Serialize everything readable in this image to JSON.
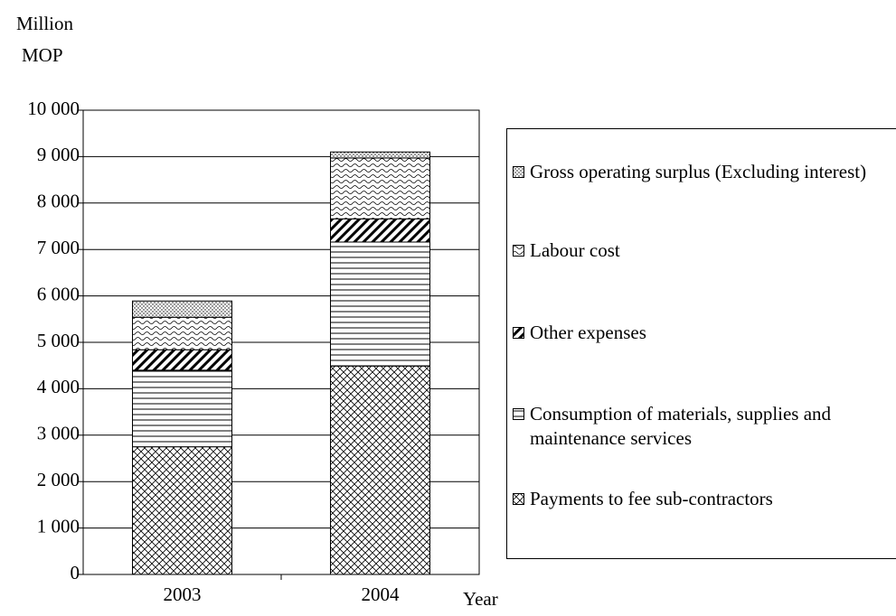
{
  "chart_data": {
    "type": "stacked_bar",
    "y_label": [
      "Million",
      "MOP"
    ],
    "x_label": "Year",
    "categories": [
      "2003",
      "2004"
    ],
    "series": [
      {
        "name": "Payments to fee sub-contractors",
        "color": "#000000",
        "values": [
          2750,
          4490
        ]
      },
      {
        "name": "Consumption of materials, supplies and maintenance services",
        "color": "#000000",
        "values": [
          1650,
          2670
        ]
      },
      {
        "name": "Other expenses",
        "color": "#000000",
        "values": [
          440,
          500
        ]
      },
      {
        "name": "Labour cost",
        "color": "#000000",
        "values": [
          700,
          1310
        ]
      },
      {
        "name": "Gross operating surplus (Excluding interest)",
        "color": "#000000",
        "values": [
          350,
          130
        ]
      }
    ],
    "ylim": [
      0,
      10000
    ],
    "yticks": [
      0,
      {
        "value": 1000,
        "label": "1 000"
      },
      {
        "value": 2000,
        "label": "2 000"
      },
      {
        "value": 3000,
        "label": "3 000"
      },
      {
        "value": 4000,
        "label": "4 000"
      },
      {
        "value": 5000,
        "label": "5 000"
      },
      {
        "value": 6000,
        "label": "6 000"
      },
      {
        "value": 7000,
        "label": "7 000"
      },
      {
        "value": 8000,
        "label": "8 000"
      },
      {
        "value": 9000,
        "label": "9 000"
      },
      {
        "value": 10000,
        "label": "10 000"
      }
    ],
    "grid": true
  }
}
